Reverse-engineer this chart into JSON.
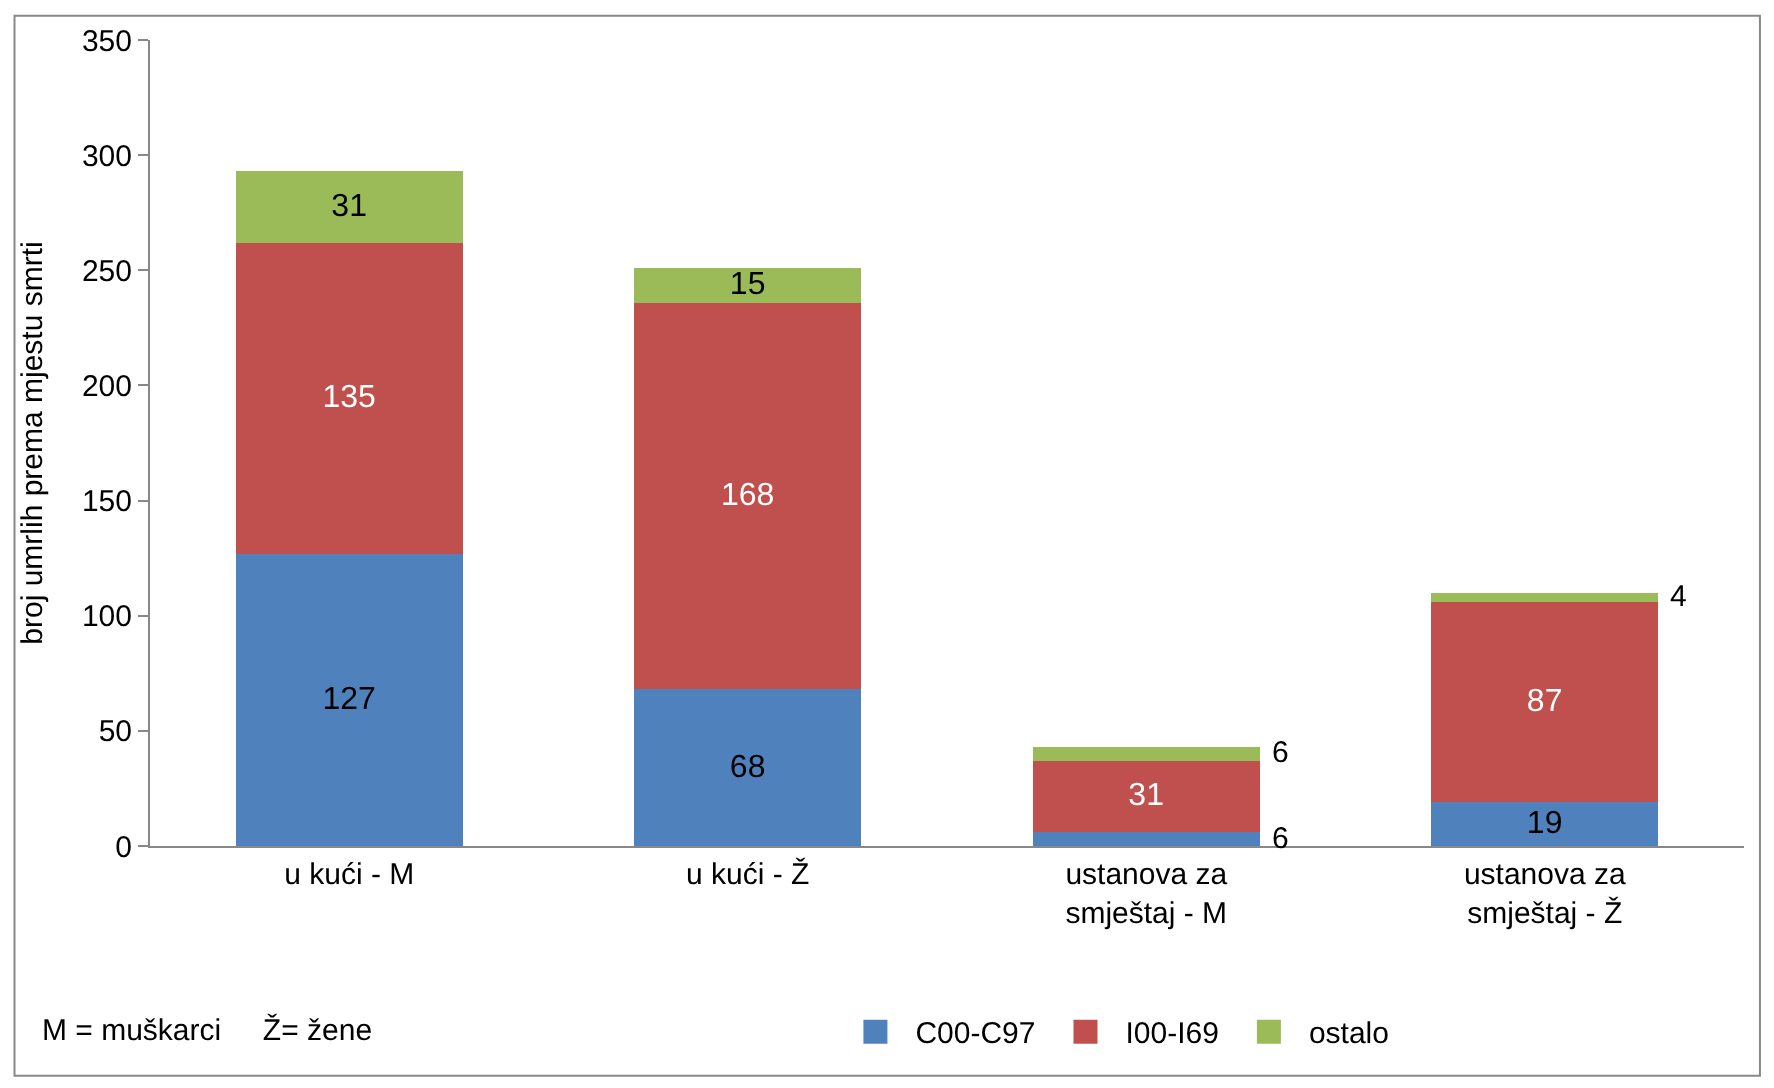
{
  "chart_data": {
    "type": "bar",
    "stacked": true,
    "ylabel": "broj umrlih prema mjestu smrti",
    "categories": [
      "u kući - M",
      "u kući - Ž",
      "ustanova za\nsmještaj - M",
      "ustanova za\nsmještaj - Ž"
    ],
    "series": [
      {
        "name": "C00-C97",
        "color": "#4f81bd",
        "values": [
          127,
          68,
          6,
          19
        ]
      },
      {
        "name": "I00-I69",
        "color": "#c0504d",
        "values": [
          135,
          168,
          31,
          87
        ]
      },
      {
        "name": "ostalo",
        "color": "#9bbb59",
        "values": [
          31,
          15,
          6,
          4
        ]
      }
    ],
    "ylim": [
      0,
      350
    ],
    "yticks": [
      0,
      50,
      100,
      150,
      200,
      250,
      300,
      350
    ],
    "data_labels": true,
    "legend": "bottom",
    "annotations": [
      "M = muškarci     Ž= žene"
    ]
  }
}
